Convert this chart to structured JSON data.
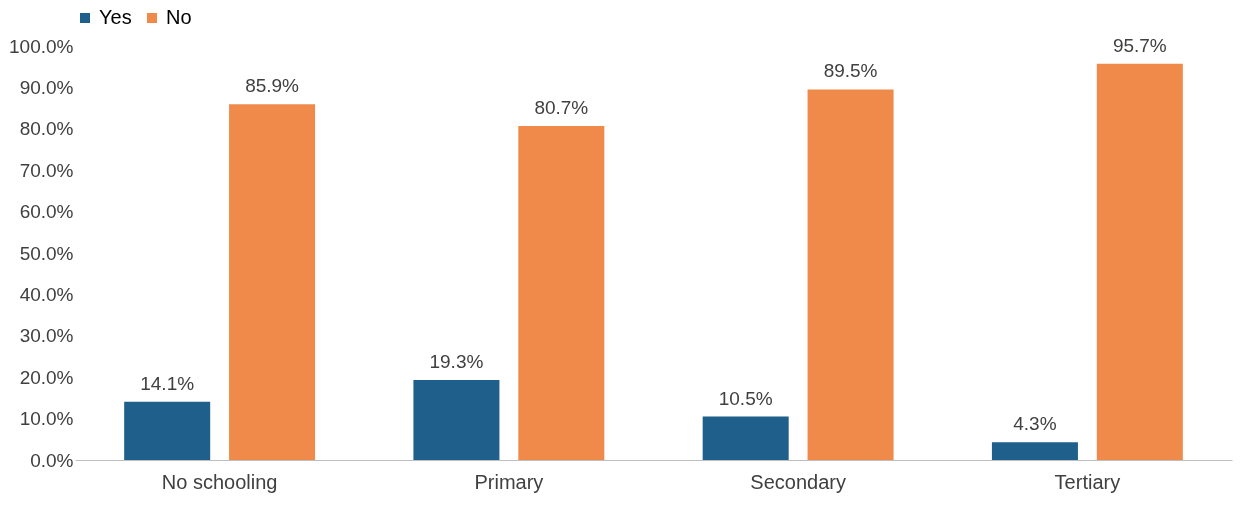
{
  "chart_data": {
    "type": "bar",
    "categories": [
      "No schooling",
      "Primary",
      "Secondary",
      "Tertiary"
    ],
    "series": [
      {
        "name": "Yes",
        "color": "#1f5f8b",
        "values": [
          14.1,
          19.3,
          10.5,
          4.3
        ],
        "value_labels": [
          "14.1%",
          "19.3%",
          "10.5%",
          "4.3%"
        ]
      },
      {
        "name": "No",
        "color": "#f08a4b",
        "values": [
          85.9,
          80.7,
          89.5,
          95.7
        ],
        "value_labels": [
          "85.9%",
          "80.7%",
          "89.5%",
          "95.7%"
        ]
      }
    ],
    "ylim": [
      0,
      100
    ],
    "yticks": [
      {
        "value": 0,
        "label": "0.0%"
      },
      {
        "value": 10,
        "label": "10.0%"
      },
      {
        "value": 20,
        "label": "20.0%"
      },
      {
        "value": 30,
        "label": "30.0%"
      },
      {
        "value": 40,
        "label": "40.0%"
      },
      {
        "value": 50,
        "label": "50.0%"
      },
      {
        "value": 60,
        "label": "60.0%"
      },
      {
        "value": 70,
        "label": "70.0%"
      },
      {
        "value": 80,
        "label": "80.0%"
      },
      {
        "value": 90,
        "label": "90.0%"
      },
      {
        "value": 100,
        "label": "100.0%"
      }
    ],
    "grid": false,
    "legend": "top"
  }
}
